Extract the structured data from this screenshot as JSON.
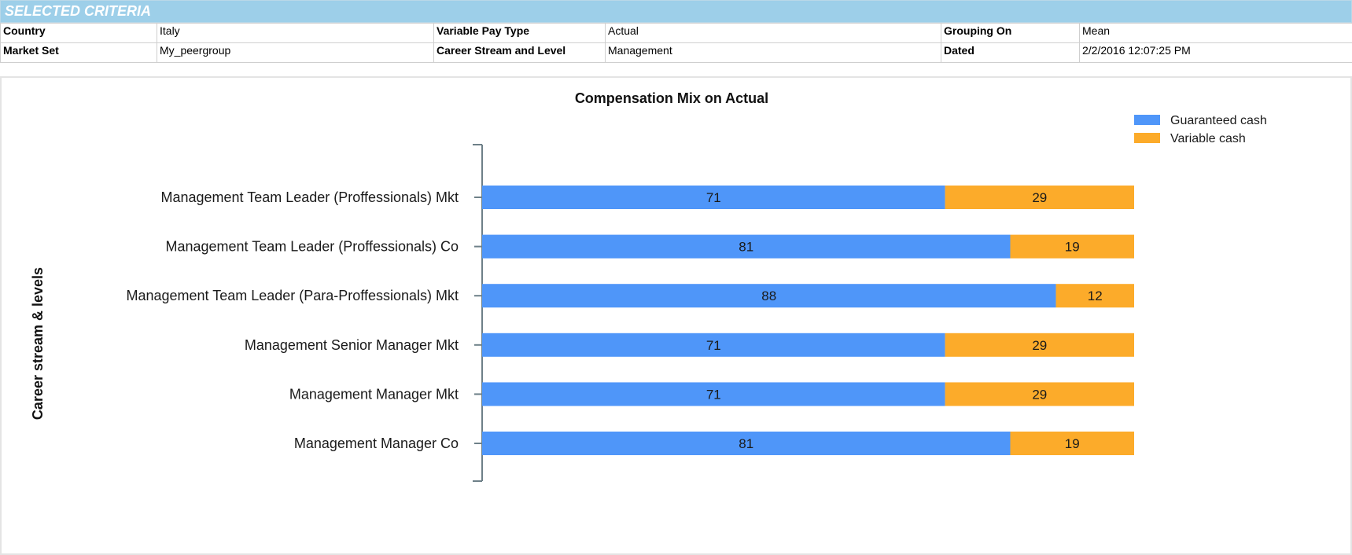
{
  "criteria": {
    "title": "SELECTED CRITERIA",
    "rows": [
      {
        "label1": "Country",
        "value1": "Italy",
        "label2": "Variable Pay Type",
        "value2": "Actual",
        "label3": "Grouping On",
        "value3": "Mean"
      },
      {
        "label1": "Market Set",
        "value1": "My_peergroup",
        "label2": "Career Stream and Level",
        "value2": "Management",
        "label3": "Dated",
        "value3": "2/2/2016 12:07:25 PM"
      }
    ]
  },
  "chart_data": {
    "type": "bar",
    "orientation": "horizontal",
    "stacked": true,
    "title": "Compensation Mix on Actual",
    "ylabel": "Career stream & levels",
    "xlabel": "",
    "legend_position": "top-right",
    "categories": [
      "Management Team Leader (Proffessionals) Mkt",
      "Management Team Leader (Proffessionals) Co",
      "Management Team Leader (Para-Proffessionals) Mkt",
      "Management Senior Manager Mkt",
      "Management Manager Mkt",
      "Management Manager Co"
    ],
    "series": [
      {
        "name": "Guaranteed cash",
        "color": "#4f96f9",
        "values": [
          71,
          81,
          88,
          71,
          71,
          81
        ]
      },
      {
        "name": "Variable cash",
        "color": "#fcab2a",
        "values": [
          29,
          19,
          12,
          29,
          29,
          19
        ]
      }
    ],
    "xlim": [
      0,
      100
    ],
    "axis_color": "#6e8088"
  }
}
